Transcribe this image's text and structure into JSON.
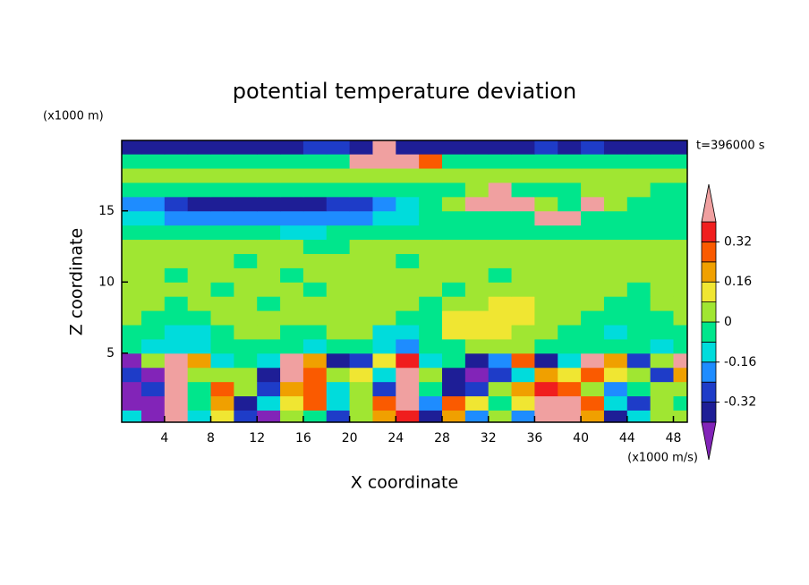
{
  "chart_data": {
    "type": "contour",
    "title": "potential temperature deviation",
    "x_label": "X coordinate",
    "y_label": "Z coordinate",
    "x_unit": "(x1000 m/s)",
    "y_unit": "(x1000 m)",
    "time_label": "t=396000 s",
    "xlim": [
      0.3,
      49.2
    ],
    "ylim": [
      0.15,
      19.95
    ],
    "xticks": [
      4,
      8,
      12,
      16,
      20,
      24,
      28,
      32,
      36,
      40,
      44,
      48
    ],
    "yticks": [
      5,
      10,
      15
    ],
    "levels": [
      -0.4,
      -0.32,
      -0.24,
      -0.16,
      -0.08,
      0,
      0.08,
      0.16,
      0.24,
      0.32,
      0.4
    ],
    "colors": [
      "#8224b8",
      "#1e1e96",
      "#1e3cc8",
      "#1e8cff",
      "#00dcdc",
      "#00e68c",
      "#a0e632",
      "#f0e632",
      "#f0a000",
      "#fa5a00",
      "#f01e1e",
      "#f0a0a0"
    ],
    "colorbar_ticks": [
      0.32,
      0.16,
      0,
      -0.16,
      -0.32
    ],
    "x": [
      1,
      3,
      5,
      7,
      9,
      11,
      13,
      15,
      17,
      19,
      21,
      23,
      25,
      27,
      29,
      31,
      33,
      35,
      37,
      39,
      41,
      43,
      45,
      47,
      49
    ],
    "y": [
      0.5,
      1.5,
      2.5,
      3.5,
      4.5,
      5.5,
      6.5,
      7.5,
      8.5,
      9.5,
      10.5,
      11.5,
      12.5,
      13.5,
      14.5,
      15.5,
      16.5,
      17.5,
      18.5,
      19.5
    ],
    "z": [
      [
        -0.1,
        -0.45,
        0.45,
        -0.1,
        0.1,
        -0.3,
        -0.45,
        0.03,
        -0.05,
        -0.3,
        0.05,
        0.2,
        0.35,
        -0.35,
        0.2,
        -0.2,
        0.03,
        -0.2,
        0.45,
        0.45,
        0.2,
        -0.35,
        -0.1,
        0.03,
        0.03
      ],
      [
        -0.45,
        -0.45,
        0.45,
        -0.05,
        0.2,
        -0.35,
        -0.1,
        0.1,
        0.25,
        -0.15,
        0.05,
        0.3,
        0.45,
        -0.2,
        0.3,
        0.1,
        -0.05,
        0.1,
        0.45,
        0.45,
        0.3,
        -0.1,
        -0.3,
        0.03,
        -0.05
      ],
      [
        -0.45,
        -0.3,
        0.45,
        -0.05,
        0.3,
        0.03,
        -0.3,
        0.2,
        0.3,
        -0.1,
        0.03,
        -0.3,
        0.45,
        -0.05,
        -0.4,
        -0.3,
        0.03,
        0.2,
        0.35,
        0.3,
        0.03,
        -0.2,
        -0.05,
        0.05,
        0.03
      ],
      [
        -0.3,
        -0.45,
        0.45,
        0.03,
        0.03,
        0.05,
        -0.35,
        0.45,
        0.3,
        0.05,
        0.1,
        -0.1,
        0.45,
        0.03,
        -0.35,
        -0.45,
        -0.3,
        -0.1,
        0.2,
        0.1,
        0.3,
        0.1,
        0.03,
        -0.3,
        0.2
      ],
      [
        -0.45,
        0.05,
        0.45,
        0.2,
        -0.1,
        -0.05,
        -0.1,
        0.45,
        0.2,
        -0.4,
        -0.3,
        0.1,
        0.35,
        -0.1,
        -0.05,
        -0.4,
        -0.2,
        0.3,
        -0.35,
        -0.1,
        0.45,
        0.2,
        -0.3,
        0.03,
        0.45
      ],
      [
        -0.05,
        -0.1,
        -0.15,
        -0.1,
        -0.05,
        -0.05,
        -0.05,
        -0.05,
        -0.1,
        -0.05,
        -0.05,
        -0.1,
        -0.2,
        -0.05,
        -0.05,
        0.03,
        0.05,
        0.03,
        -0.05,
        -0.05,
        -0.05,
        -0.05,
        -0.05,
        -0.1,
        -0.05
      ],
      [
        -0.05,
        -0.05,
        -0.1,
        -0.12,
        -0.05,
        0.03,
        0.03,
        -0.05,
        -0.05,
        0.03,
        0.03,
        -0.1,
        -0.12,
        -0.05,
        0.1,
        0.1,
        0.1,
        0.05,
        0.03,
        -0.05,
        -0.05,
        -0.12,
        -0.05,
        -0.05,
        -0.05
      ],
      [
        0.03,
        -0.05,
        -0.05,
        -0.05,
        0.03,
        0.03,
        0.03,
        0.03,
        0.03,
        0.03,
        0.03,
        0.03,
        -0.05,
        -0.05,
        0.1,
        0.12,
        0.1,
        0.1,
        0.03,
        0.03,
        -0.05,
        -0.05,
        -0.05,
        -0.05,
        0.03
      ],
      [
        0.03,
        0.03,
        -0.05,
        0.03,
        0.03,
        0.03,
        -0.05,
        0.03,
        0.03,
        0.03,
        0.03,
        0.03,
        0.03,
        -0.05,
        0.05,
        0.03,
        0.1,
        0.1,
        0.03,
        0.03,
        0.03,
        -0.05,
        -0.05,
        0.03,
        0.03
      ],
      [
        0.03,
        0.03,
        0.03,
        0.03,
        -0.05,
        0.03,
        0.03,
        0.03,
        -0.05,
        0.03,
        0.03,
        0.03,
        0.03,
        0.03,
        -0.05,
        0.03,
        0.03,
        0.03,
        0.03,
        0.03,
        0.03,
        0.03,
        -0.05,
        0.03,
        0.03
      ],
      [
        0.03,
        0.03,
        -0.05,
        0.03,
        0.03,
        0.03,
        0.03,
        -0.05,
        0.03,
        0.03,
        0.03,
        0.03,
        0.03,
        0.03,
        0.03,
        0.03,
        -0.05,
        0.03,
        0.03,
        0.03,
        0.03,
        0.03,
        0.03,
        0.03,
        0.03
      ],
      [
        0.03,
        0.03,
        0.03,
        0.03,
        0.03,
        -0.05,
        0.03,
        0.03,
        0.03,
        0.03,
        0.03,
        0.03,
        -0.05,
        0.03,
        0.03,
        0.03,
        0.03,
        0.03,
        0.03,
        0.03,
        0.03,
        0.03,
        0.03,
        0.03,
        0.03
      ],
      [
        0.03,
        0.03,
        0.03,
        0.03,
        0.03,
        0.03,
        0.03,
        0.03,
        -0.05,
        -0.05,
        0.03,
        0.03,
        0.03,
        0.03,
        0.03,
        0.03,
        0.03,
        0.03,
        0.03,
        0.03,
        0.03,
        0.03,
        0.03,
        0.03,
        0.03
      ],
      [
        -0.05,
        -0.05,
        -0.05,
        -0.05,
        -0.05,
        -0.05,
        -0.05,
        -0.12,
        -0.12,
        -0.05,
        -0.05,
        -0.05,
        -0.05,
        -0.05,
        -0.05,
        -0.05,
        -0.05,
        -0.05,
        -0.05,
        -0.05,
        -0.05,
        -0.05,
        -0.05,
        -0.05,
        -0.05
      ],
      [
        -0.12,
        -0.12,
        -0.2,
        -0.2,
        -0.2,
        -0.2,
        -0.2,
        -0.2,
        -0.2,
        -0.2,
        -0.2,
        -0.12,
        -0.12,
        -0.05,
        -0.05,
        -0.05,
        -0.05,
        -0.05,
        0.45,
        0.45,
        -0.05,
        -0.05,
        -0.05,
        -0.05,
        -0.05
      ],
      [
        -0.2,
        -0.2,
        -0.3,
        -0.35,
        -0.35,
        -0.35,
        -0.35,
        -0.35,
        -0.35,
        -0.3,
        -0.3,
        -0.2,
        -0.12,
        -0.05,
        0.03,
        0.45,
        0.45,
        0.45,
        0.03,
        -0.05,
        0.45,
        0.03,
        -0.05,
        -0.05,
        -0.05
      ],
      [
        -0.05,
        -0.05,
        -0.05,
        -0.05,
        -0.05,
        -0.05,
        -0.05,
        -0.05,
        -0.05,
        -0.05,
        -0.05,
        -0.05,
        -0.05,
        -0.05,
        -0.05,
        0.03,
        0.45,
        -0.05,
        -0.05,
        -0.05,
        0.03,
        0.03,
        0.03,
        -0.05,
        -0.05
      ],
      [
        0.03,
        0.03,
        0.03,
        0.03,
        0.03,
        0.03,
        0.03,
        0.03,
        0.03,
        0.03,
        0.03,
        0.03,
        0.03,
        0.03,
        0.03,
        0.03,
        0.03,
        0.03,
        0.03,
        0.03,
        0.03,
        0.03,
        0.03,
        0.03,
        0.03
      ],
      [
        -0.05,
        -0.05,
        -0.05,
        -0.05,
        -0.05,
        -0.05,
        -0.05,
        -0.05,
        -0.05,
        -0.05,
        0.45,
        0.45,
        0.45,
        0.3,
        -0.05,
        -0.05,
        -0.05,
        -0.05,
        -0.05,
        -0.05,
        -0.05,
        -0.05,
        -0.05,
        -0.05,
        -0.05
      ],
      [
        -0.35,
        -0.35,
        -0.35,
        -0.35,
        -0.35,
        -0.35,
        -0.35,
        -0.35,
        -0.3,
        -0.3,
        -0.35,
        0.45,
        -0.35,
        -0.35,
        -0.35,
        -0.35,
        -0.35,
        -0.35,
        -0.3,
        -0.35,
        -0.3,
        -0.35,
        -0.35,
        -0.35,
        -0.35
      ]
    ]
  }
}
